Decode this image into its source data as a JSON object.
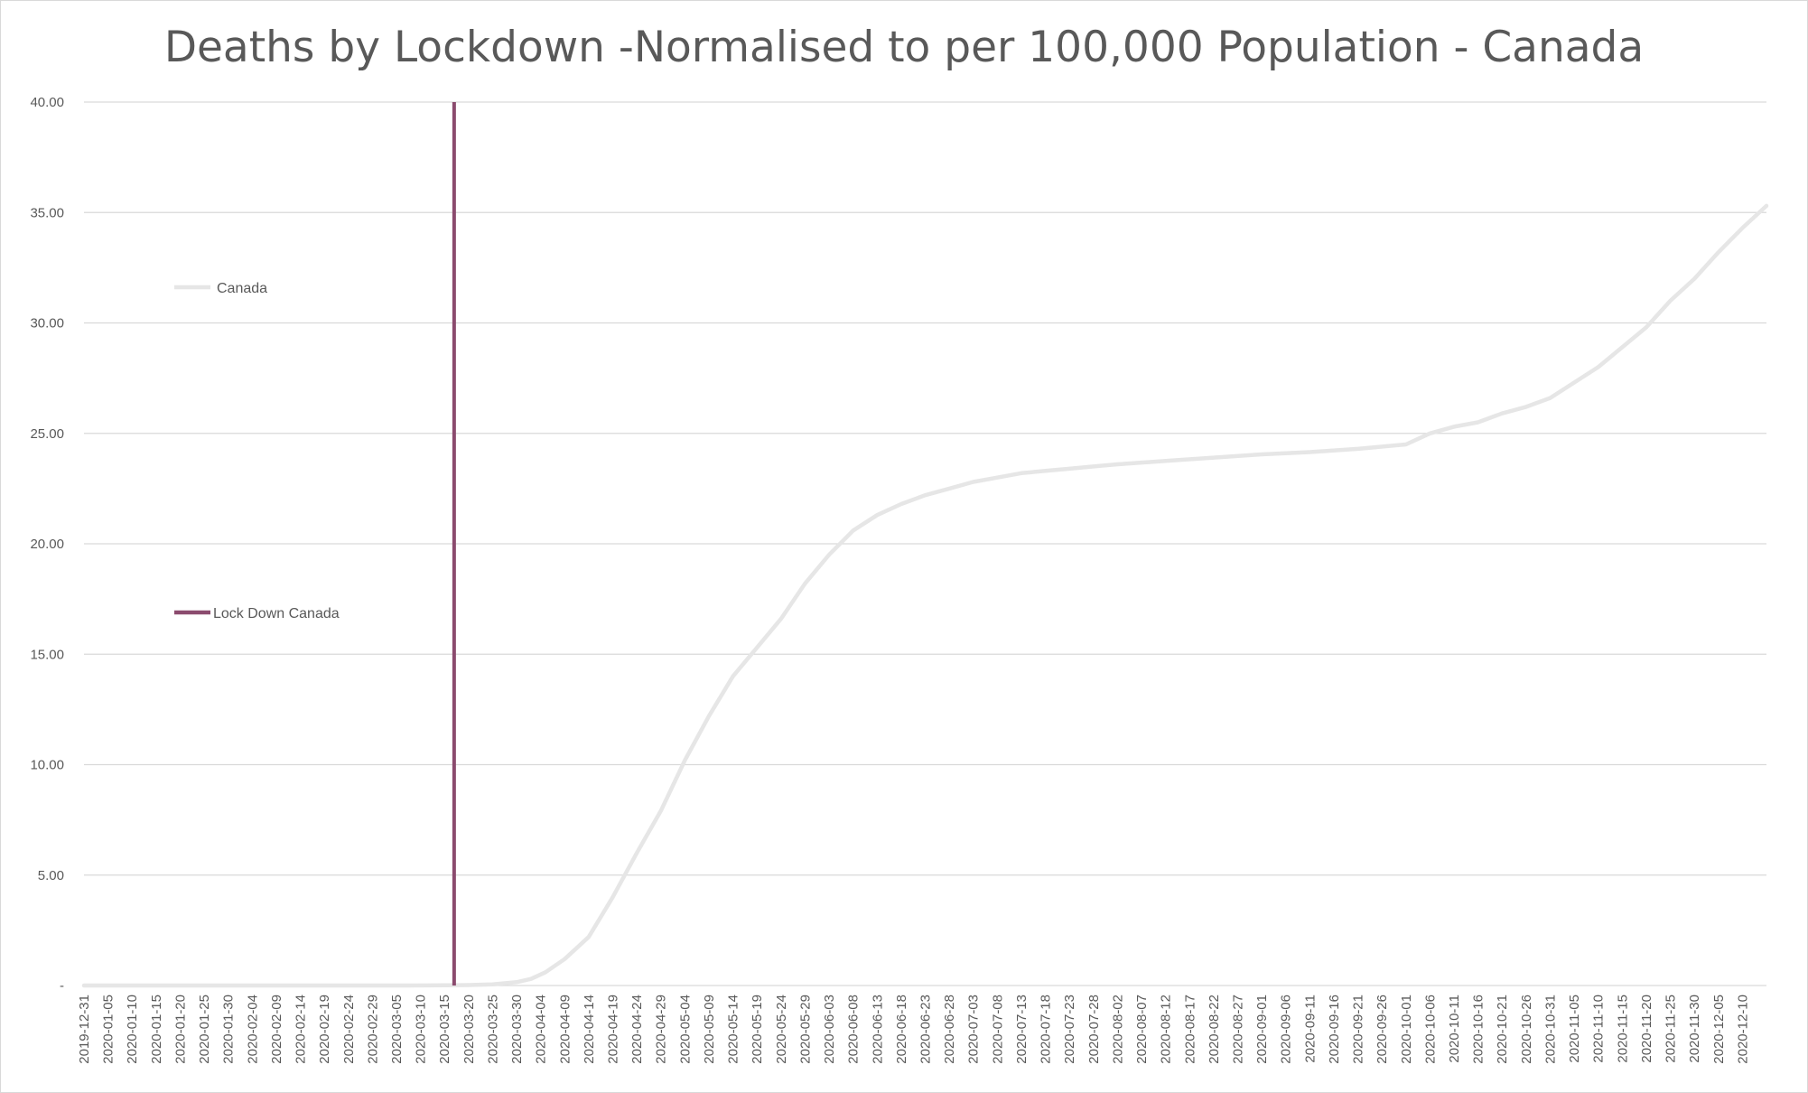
{
  "chart_data": {
    "type": "line",
    "title": "Deaths by Lockdown -Normalised to per 100,000 Population - Canada",
    "xlabel": "",
    "ylabel": "",
    "ylim": [
      0,
      40
    ],
    "y_ticks": [
      {
        "value": 0,
        "label": "-"
      },
      {
        "value": 5,
        "label": "5.00"
      },
      {
        "value": 10,
        "label": "10.00"
      },
      {
        "value": 15,
        "label": "15.00"
      },
      {
        "value": 20,
        "label": "20.00"
      },
      {
        "value": 25,
        "label": "25.00"
      },
      {
        "value": 30,
        "label": "30.00"
      },
      {
        "value": 35,
        "label": "35.00"
      },
      {
        "value": 40,
        "label": "40.00"
      }
    ],
    "x_range": [
      "2019-12-31",
      "2020-12-15"
    ],
    "x_tick_labels": [
      "2019-12-31",
      "2020-01-05",
      "2020-01-10",
      "2020-01-15",
      "2020-01-20",
      "2020-01-25",
      "2020-01-30",
      "2020-02-04",
      "2020-02-09",
      "2020-02-14",
      "2020-02-19",
      "2020-02-24",
      "2020-02-29",
      "2020-03-05",
      "2020-03-10",
      "2020-03-15",
      "2020-03-20",
      "2020-03-25",
      "2020-03-30",
      "2020-04-04",
      "2020-04-09",
      "2020-04-14",
      "2020-04-19",
      "2020-04-24",
      "2020-04-29",
      "2020-05-04",
      "2020-05-09",
      "2020-05-14",
      "2020-05-19",
      "2020-05-24",
      "2020-05-29",
      "2020-06-03",
      "2020-06-08",
      "2020-06-13",
      "2020-06-18",
      "2020-06-23",
      "2020-06-28",
      "2020-07-03",
      "2020-07-08",
      "2020-07-13",
      "2020-07-18",
      "2020-07-23",
      "2020-07-28",
      "2020-08-02",
      "2020-08-07",
      "2020-08-12",
      "2020-08-17",
      "2020-08-22",
      "2020-08-27",
      "2020-09-01",
      "2020-09-06",
      "2020-09-11",
      "2020-09-16",
      "2020-09-21",
      "2020-09-26",
      "2020-10-01",
      "2020-10-06",
      "2020-10-11",
      "2020-10-16",
      "2020-10-21",
      "2020-10-26",
      "2020-10-31",
      "2020-11-05",
      "2020-11-10",
      "2020-11-15",
      "2020-11-20",
      "2020-11-25",
      "2020-11-30",
      "2020-12-05",
      "2020-12-10"
    ],
    "grid": true,
    "legend_placement": "left",
    "series": [
      {
        "name": "Canada",
        "color": "#e6e6e6",
        "points": [
          {
            "x": "2019-12-31",
            "y": 0
          },
          {
            "x": "2020-03-08",
            "y": 0
          },
          {
            "x": "2020-03-20",
            "y": 0.02
          },
          {
            "x": "2020-03-25",
            "y": 0.05
          },
          {
            "x": "2020-03-30",
            "y": 0.15
          },
          {
            "x": "2020-04-02",
            "y": 0.3
          },
          {
            "x": "2020-04-05",
            "y": 0.6
          },
          {
            "x": "2020-04-09",
            "y": 1.2
          },
          {
            "x": "2020-04-14",
            "y": 2.2
          },
          {
            "x": "2020-04-19",
            "y": 4.0
          },
          {
            "x": "2020-04-24",
            "y": 6.0
          },
          {
            "x": "2020-04-29",
            "y": 7.9
          },
          {
            "x": "2020-05-04",
            "y": 10.2
          },
          {
            "x": "2020-05-09",
            "y": 12.2
          },
          {
            "x": "2020-05-14",
            "y": 14.0
          },
          {
            "x": "2020-05-19",
            "y": 15.3
          },
          {
            "x": "2020-05-24",
            "y": 16.6
          },
          {
            "x": "2020-05-29",
            "y": 18.2
          },
          {
            "x": "2020-06-03",
            "y": 19.5
          },
          {
            "x": "2020-06-08",
            "y": 20.6
          },
          {
            "x": "2020-06-13",
            "y": 21.3
          },
          {
            "x": "2020-06-18",
            "y": 21.8
          },
          {
            "x": "2020-06-23",
            "y": 22.2
          },
          {
            "x": "2020-06-28",
            "y": 22.5
          },
          {
            "x": "2020-07-03",
            "y": 22.8
          },
          {
            "x": "2020-07-08",
            "y": 23.0
          },
          {
            "x": "2020-07-13",
            "y": 23.2
          },
          {
            "x": "2020-07-18",
            "y": 23.3
          },
          {
            "x": "2020-07-23",
            "y": 23.4
          },
          {
            "x": "2020-07-28",
            "y": 23.5
          },
          {
            "x": "2020-08-02",
            "y": 23.6
          },
          {
            "x": "2020-08-12",
            "y": 23.75
          },
          {
            "x": "2020-08-22",
            "y": 23.9
          },
          {
            "x": "2020-09-01",
            "y": 24.05
          },
          {
            "x": "2020-09-11",
            "y": 24.15
          },
          {
            "x": "2020-09-21",
            "y": 24.3
          },
          {
            "x": "2020-10-01",
            "y": 24.5
          },
          {
            "x": "2020-10-06",
            "y": 25.0
          },
          {
            "x": "2020-10-11",
            "y": 25.3
          },
          {
            "x": "2020-10-16",
            "y": 25.5
          },
          {
            "x": "2020-10-21",
            "y": 25.9
          },
          {
            "x": "2020-10-26",
            "y": 26.2
          },
          {
            "x": "2020-10-31",
            "y": 26.6
          },
          {
            "x": "2020-11-05",
            "y": 27.3
          },
          {
            "x": "2020-11-10",
            "y": 28.0
          },
          {
            "x": "2020-11-15",
            "y": 28.9
          },
          {
            "x": "2020-11-20",
            "y": 29.8
          },
          {
            "x": "2020-11-25",
            "y": 31.0
          },
          {
            "x": "2020-11-30",
            "y": 32.0
          },
          {
            "x": "2020-12-05",
            "y": 33.2
          },
          {
            "x": "2020-12-10",
            "y": 34.3
          },
          {
            "x": "2020-12-15",
            "y": 35.3
          }
        ]
      },
      {
        "name": "Lock Down Canada",
        "color": "#8b4b6e",
        "type": "vertical-line",
        "x": "2020-03-17",
        "y_range": [
          0,
          40
        ]
      }
    ]
  }
}
